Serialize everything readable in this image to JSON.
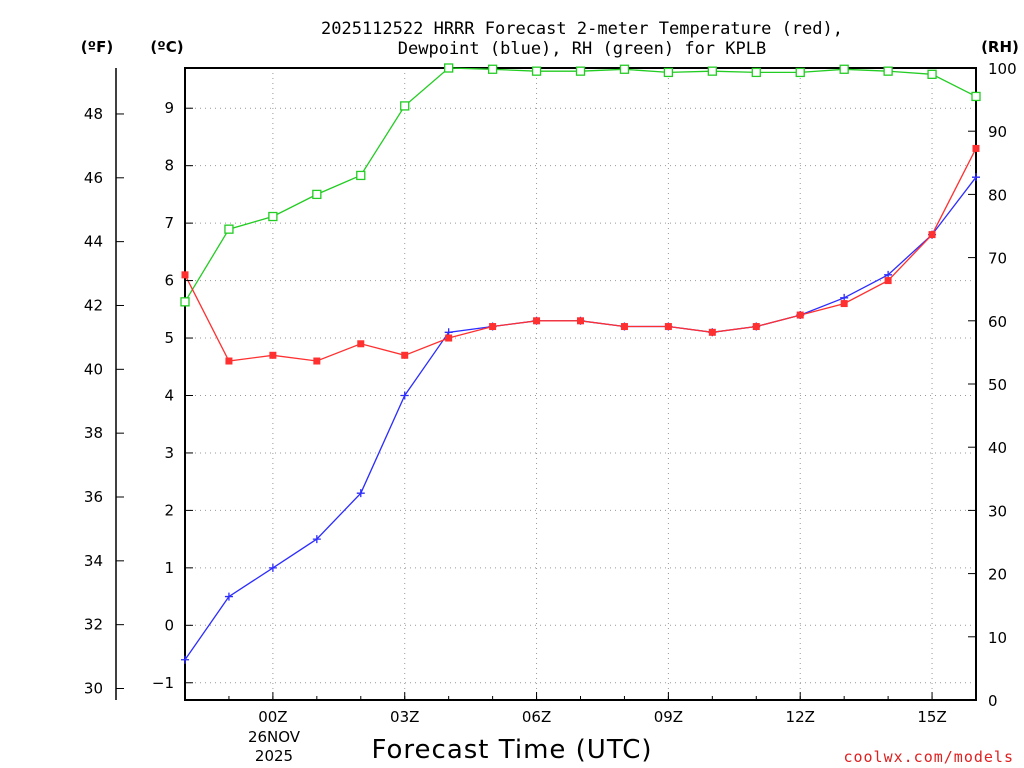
{
  "chart_data": {
    "type": "line",
    "title": "2025112522 HRRR Forecast 2-meter Temperature (red),",
    "subtitle": "Dewpoint (blue), RH (green) for KPLB",
    "xlabel": "Forecast Time (UTC)",
    "x": [
      "22Z",
      "23Z",
      "00Z",
      "01Z",
      "02Z",
      "03Z",
      "04Z",
      "05Z",
      "06Z",
      "07Z",
      "08Z",
      "09Z",
      "10Z",
      "11Z",
      "12Z",
      "13Z",
      "14Z",
      "15Z",
      "16Z"
    ],
    "x_ticks": [
      "00Z",
      "03Z",
      "06Z",
      "09Z",
      "12Z",
      "15Z"
    ],
    "x_tick_index": [
      2,
      5,
      8,
      11,
      14,
      17
    ],
    "date_line1": "26NOV",
    "date_line2": "2025",
    "left_outer_axis": {
      "unit": "(ºF)",
      "range": [
        29.64,
        49.44
      ],
      "ticks": [
        "30",
        "32",
        "34",
        "36",
        "38",
        "40",
        "42",
        "44",
        "46",
        "48"
      ]
    },
    "left_axis": {
      "unit": "(ºC)",
      "range": [
        -1.3,
        9.7
      ],
      "ticks": [
        "−1",
        "0",
        "1",
        "2",
        "3",
        "4",
        "5",
        "6",
        "7",
        "8",
        "9"
      ]
    },
    "right_axis": {
      "unit": "(RH)",
      "range": [
        0,
        100
      ],
      "ticks": [
        "0",
        "10",
        "20",
        "30",
        "40",
        "50",
        "60",
        "70",
        "80",
        "90",
        "100"
      ]
    },
    "grid": true,
    "series": [
      {
        "name": "Temperature",
        "axis": "left",
        "color": "#ff3030",
        "marker": "square-filled",
        "values": [
          6.1,
          4.6,
          4.7,
          4.6,
          4.9,
          4.7,
          5.0,
          5.2,
          5.3,
          5.3,
          5.2,
          5.2,
          5.1,
          5.2,
          5.4,
          5.6,
          6.0,
          6.8,
          8.3
        ]
      },
      {
        "name": "Dewpoint",
        "axis": "left",
        "color": "#2c2cff",
        "marker": "plus",
        "values": [
          -0.6,
          0.5,
          1.0,
          1.5,
          2.3,
          4.0,
          5.1,
          5.2,
          5.3,
          5.3,
          5.2,
          5.2,
          5.1,
          5.2,
          5.4,
          5.7,
          6.1,
          6.8,
          7.8
        ]
      },
      {
        "name": "RH",
        "axis": "right",
        "color": "#22cc22",
        "marker": "square-open",
        "values": [
          63,
          74.5,
          76.5,
          80,
          83,
          94,
          100,
          99.8,
          99.5,
          99.5,
          99.8,
          99.3,
          99.5,
          99.3,
          99.3,
          99.8,
          99.5,
          99,
          95.5
        ]
      }
    ]
  },
  "credit": "coolwx.com/models",
  "colors": {
    "background": "#ffffff",
    "axis": "#000000",
    "grid": "#999999",
    "credit": "#e02020"
  }
}
